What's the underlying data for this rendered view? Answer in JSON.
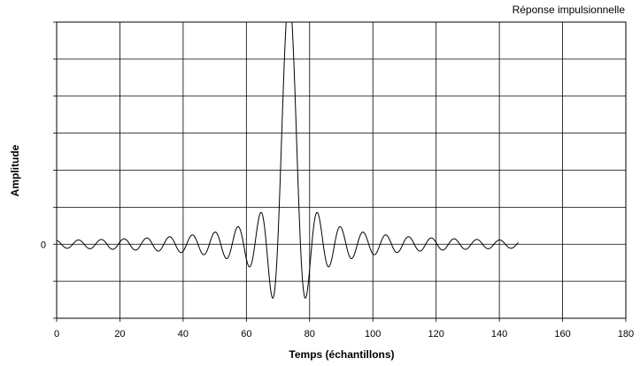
{
  "chart_data": {
    "type": "line",
    "title": "Réponse impulsionnelle",
    "xlabel": "Temps (échantillons)",
    "ylabel": "Amplitude",
    "xlim": [
      0,
      180
    ],
    "ylim": [
      -2,
      6
    ],
    "grid": true,
    "x_ticks": [
      "0",
      "20",
      "40",
      "60",
      "80",
      "100",
      "120",
      "140",
      "160",
      "180"
    ],
    "y_tick_labels": [
      {
        "value": 0,
        "label": "0"
      }
    ],
    "series": [
      {
        "color": "#000000",
        "signal": "sinc",
        "center": 73.5,
        "peak": 6.7,
        "zero_spacing": 3.6,
        "x_range": [
          0,
          146
        ]
      }
    ]
  }
}
